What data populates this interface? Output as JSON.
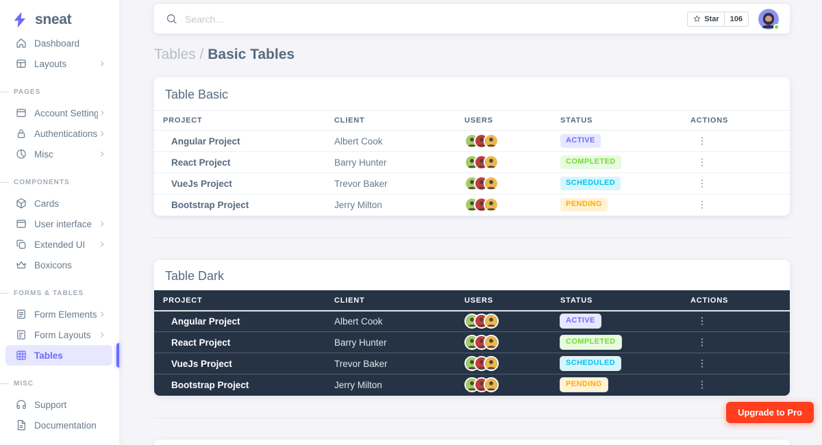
{
  "brand": {
    "name": "sneat"
  },
  "navbar": {
    "search_placeholder": "Search...",
    "star": {
      "label": "Star",
      "count": "106"
    }
  },
  "breadcrumb": {
    "section": "Tables /",
    "page": "Basic Tables"
  },
  "sidebar": {
    "groups": [
      {
        "section": null,
        "items": [
          {
            "label": "Dashboard",
            "icon": "home",
            "chevron": false,
            "active": false
          },
          {
            "label": "Layouts",
            "icon": "layout",
            "chevron": true,
            "active": false
          }
        ]
      },
      {
        "section": "PAGES",
        "items": [
          {
            "label": "Account Settings",
            "icon": "card",
            "chevron": true,
            "active": false
          },
          {
            "label": "Authentications",
            "icon": "lock",
            "chevron": true,
            "active": false
          },
          {
            "label": "Misc",
            "icon": "pie",
            "chevron": true,
            "active": false
          }
        ]
      },
      {
        "section": "COMPONENTS",
        "items": [
          {
            "label": "Cards",
            "icon": "box",
            "chevron": false,
            "active": false
          },
          {
            "label": "User interface",
            "icon": "window",
            "chevron": true,
            "active": false
          },
          {
            "label": "Extended UI",
            "icon": "copy",
            "chevron": true,
            "active": false
          },
          {
            "label": "Boxicons",
            "icon": "crown",
            "chevron": false,
            "active": false
          }
        ]
      },
      {
        "section": "FORMS & TABLES",
        "items": [
          {
            "label": "Form Elements",
            "icon": "file-lines",
            "chevron": true,
            "active": false
          },
          {
            "label": "Form Layouts",
            "icon": "file-layout",
            "chevron": true,
            "active": false
          },
          {
            "label": "Tables",
            "icon": "grid",
            "chevron": false,
            "active": true
          }
        ]
      },
      {
        "section": "MISC",
        "items": [
          {
            "label": "Support",
            "icon": "headphones",
            "chevron": false,
            "active": false
          },
          {
            "label": "Documentation",
            "icon": "doc",
            "chevron": false,
            "active": false
          }
        ]
      }
    ]
  },
  "tables": [
    {
      "title": "Table Basic",
      "variant": "light",
      "columns": [
        "PROJECT",
        "CLIENT",
        "USERS",
        "STATUS",
        "ACTIONS"
      ],
      "rows": [
        {
          "project": "Angular Project",
          "client": "Albert Cook",
          "users": 3,
          "status": "active"
        },
        {
          "project": "React Project",
          "client": "Barry Hunter",
          "users": 3,
          "status": "completed"
        },
        {
          "project": "VueJs Project",
          "client": "Trevor Baker",
          "users": 3,
          "status": "scheduled"
        },
        {
          "project": "Bootstrap Project",
          "client": "Jerry Milton",
          "users": 3,
          "status": "pending"
        }
      ]
    },
    {
      "title": "Table Dark",
      "variant": "dark",
      "columns": [
        "PROJECT",
        "CLIENT",
        "USERS",
        "STATUS",
        "ACTIONS"
      ],
      "rows": [
        {
          "project": "Angular Project",
          "client": "Albert Cook",
          "users": 3,
          "status": "active"
        },
        {
          "project": "React Project",
          "client": "Barry Hunter",
          "users": 3,
          "status": "completed"
        },
        {
          "project": "VueJs Project",
          "client": "Trevor Baker",
          "users": 3,
          "status": "scheduled"
        },
        {
          "project": "Bootstrap Project",
          "client": "Jerry Milton",
          "users": 3,
          "status": "pending"
        }
      ]
    }
  ],
  "statuses": {
    "active": {
      "label": "ACTIVE",
      "bg": "#e7e7ff",
      "fg": "#696cff"
    },
    "completed": {
      "label": "COMPLETED",
      "bg": "#e8fadf",
      "fg": "#71dd37"
    },
    "scheduled": {
      "label": "SCHEDULED",
      "bg": "#d7f5fc",
      "fg": "#03c3ec"
    },
    "pending": {
      "label": "PENDING",
      "bg": "#fff2d6",
      "fg": "#ffab00"
    }
  },
  "avatars": {
    "palette": [
      "#9fce63",
      "#c13b3f",
      "#e9b94e"
    ]
  },
  "upgrade_button": {
    "label": "Upgrade to Pro",
    "bg": "#ff3e1d"
  },
  "colors": {
    "primary": "#696cff",
    "dark_table": "#253345",
    "page_bg": "#f5f5f9"
  }
}
